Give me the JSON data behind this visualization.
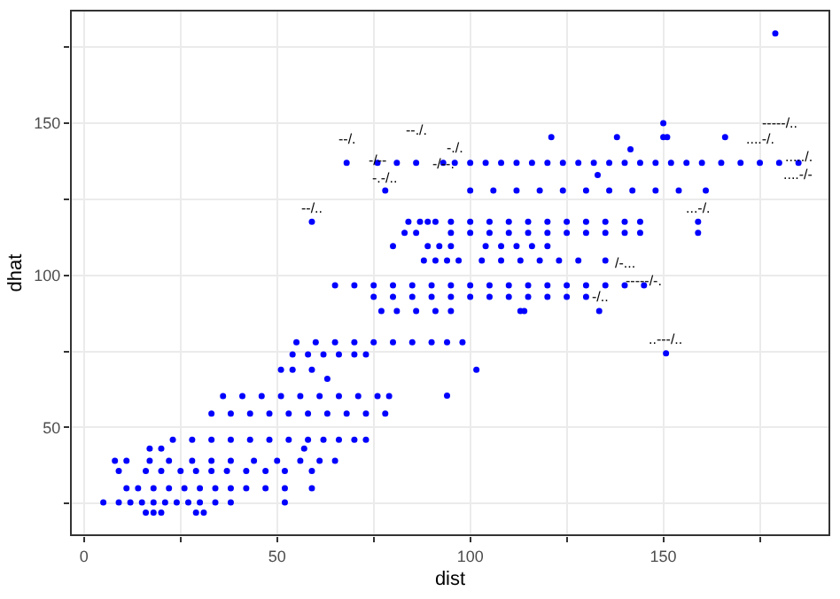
{
  "chart_data": {
    "type": "scatter",
    "xlabel": "dist",
    "ylabel": "dhat",
    "xlim": [
      -3.4,
      193
    ],
    "ylim": [
      14.6,
      187
    ],
    "xticks": [
      0,
      {
        "value": 25,
        "label": null
      },
      50,
      {
        "value": 75,
        "label": null
      },
      100,
      {
        "value": 125,
        "label": null
      },
      150,
      {
        "value": 175,
        "label": null
      }
    ],
    "yticks": [
      {
        "value": 25,
        "label": null
      },
      50,
      {
        "value": 75,
        "label": null
      },
      100,
      {
        "value": 125,
        "label": null
      },
      150,
      {
        "value": 175,
        "label": null
      }
    ],
    "grid": true,
    "marker": "circle",
    "series": [
      {
        "color": "#0000ff",
        "x": [
          16,
          18,
          20,
          29,
          31,
          5,
          9,
          12,
          15,
          18,
          21,
          24,
          27,
          30,
          34,
          38,
          52,
          11,
          14,
          18,
          22,
          26,
          30,
          34,
          38,
          42,
          47,
          52,
          59,
          9,
          16,
          20,
          25,
          29,
          33,
          37,
          42,
          47,
          52,
          59,
          8,
          11,
          17,
          22,
          28,
          33,
          38,
          44,
          50,
          56,
          61,
          65,
          17,
          20,
          57,
          23,
          28,
          33,
          38,
          43,
          48,
          53,
          58,
          62,
          66,
          70,
          73,
          33,
          38,
          43,
          48,
          53,
          58,
          63,
          68,
          73,
          78,
          36,
          41,
          46,
          51,
          56,
          61,
          66,
          71,
          76,
          79,
          63,
          51,
          54,
          59,
          54,
          58,
          62,
          66,
          70,
          73,
          55,
          60,
          65,
          70,
          75,
          80,
          85,
          90,
          94,
          98,
          77,
          81,
          86,
          91,
          95,
          113,
          75,
          80,
          85,
          90,
          95,
          100,
          105,
          110,
          115,
          120,
          125,
          130,
          65,
          70,
          75,
          80,
          85,
          90,
          95,
          100,
          105,
          110,
          115,
          120,
          125,
          130,
          135,
          140,
          145,
          88,
          91,
          94,
          97,
          103,
          108,
          113,
          118,
          123,
          128,
          135,
          80,
          89,
          92,
          95,
          104,
          108,
          112,
          116,
          120,
          83,
          86,
          95,
          100,
          105,
          110,
          115,
          120,
          125,
          130,
          135,
          140,
          144,
          159,
          59,
          84,
          87,
          91,
          89,
          95,
          100,
          105,
          110,
          115,
          120,
          125,
          130,
          135,
          140,
          144,
          159,
          78,
          100,
          106,
          112,
          118,
          124,
          130,
          136,
          142,
          148,
          154,
          161,
          68,
          76,
          81,
          86,
          93,
          96,
          100,
          104,
          108,
          112,
          116,
          120,
          124,
          128,
          132,
          136,
          140,
          144,
          148,
          152,
          156,
          160,
          165,
          170,
          175,
          180,
          185,
          121,
          138,
          150,
          151,
          166,
          150,
          141.5,
          179,
          133,
          150.7,
          101.6,
          94,
          114,
          133.4
        ],
        "values": [
          22,
          22,
          22,
          22,
          22,
          25.4,
          25.4,
          25.4,
          25.4,
          25.4,
          25.4,
          25.4,
          25.4,
          25.4,
          25.4,
          25.4,
          25.4,
          30,
          30,
          30,
          30,
          30,
          30,
          30,
          30,
          30,
          30,
          30,
          30,
          35.7,
          35.7,
          35.7,
          35.7,
          35.7,
          35.7,
          35.7,
          35.7,
          35.7,
          35.7,
          35.7,
          39.1,
          39.1,
          39.1,
          39.1,
          39.1,
          39.1,
          39.1,
          39.1,
          39.1,
          39.1,
          39.1,
          39.1,
          43.1,
          43.1,
          43.1,
          46,
          46,
          46,
          46,
          46,
          46,
          46,
          46,
          46,
          46,
          46,
          46,
          54.6,
          54.6,
          54.6,
          54.6,
          54.6,
          54.6,
          54.6,
          54.6,
          54.6,
          54.6,
          60.3,
          60.3,
          60.3,
          60.3,
          60.3,
          60.3,
          60.3,
          60.3,
          60.3,
          60.3,
          66,
          69,
          69,
          69,
          74,
          74,
          74,
          74,
          74,
          74,
          78,
          78,
          78,
          78,
          78,
          78,
          78,
          78,
          78,
          78,
          88.3,
          88.3,
          88.3,
          88.3,
          88.3,
          88.3,
          92.9,
          92.9,
          92.9,
          92.9,
          92.9,
          92.9,
          92.9,
          92.9,
          92.9,
          92.9,
          92.9,
          92.9,
          96.7,
          96.7,
          96.7,
          96.7,
          96.7,
          96.7,
          96.7,
          96.7,
          96.7,
          96.7,
          96.7,
          96.7,
          96.7,
          96.7,
          96.7,
          96.7,
          96.7,
          104.9,
          104.9,
          104.9,
          104.9,
          104.9,
          104.9,
          104.9,
          104.9,
          104.9,
          104.9,
          104.9,
          109.6,
          109.6,
          109.6,
          109.6,
          109.6,
          109.6,
          109.6,
          109.6,
          109.6,
          114,
          114,
          114,
          114,
          114,
          114,
          114,
          114,
          114,
          114,
          114,
          114,
          114,
          114,
          117.6,
          117.6,
          117.6,
          117.6,
          117.6,
          117.6,
          117.6,
          117.6,
          117.6,
          117.6,
          117.6,
          117.6,
          117.6,
          117.6,
          117.6,
          117.6,
          117.6,
          127.9,
          127.9,
          127.9,
          127.9,
          127.9,
          127.9,
          127.9,
          127.9,
          127.9,
          127.9,
          127.9,
          127.9,
          137,
          137,
          137,
          137,
          137,
          137,
          137,
          137,
          137,
          137,
          137,
          137,
          137,
          137,
          137,
          137,
          137,
          137,
          137,
          137,
          137,
          137,
          137,
          137,
          137,
          137,
          137,
          145.4,
          145.4,
          145.4,
          145.4,
          145.4,
          150,
          141.4,
          179.5,
          133,
          74.4,
          69,
          60.5,
          88.3,
          88.3
        ]
      }
    ],
    "annotations": [
      {
        "text": "--/.",
        "x": 68,
        "y": 137
      },
      {
        "text": "-/--",
        "x": 76,
        "y": 137
      },
      {
        "text": "--./.",
        "x": 86,
        "y": 137
      },
      {
        "text": "-/--.",
        "x": 93,
        "y": 137
      },
      {
        "text": "-.-/..",
        "x": 78,
        "y": 127.9
      },
      {
        "text": "--/..",
        "x": 59,
        "y": 117.6
      },
      {
        "text": "-----/..",
        "x": 180,
        "y": 137
      },
      {
        "text": "....-/-",
        "x": 185,
        "y": 137
      },
      {
        "text": "....-/.",
        "x": 175,
        "y": 137
      },
      {
        "text": "...../.",
        "x": 185,
        "y": 137
      },
      {
        "text": "-./.",
        "x": 96,
        "y": 137
      },
      {
        "text": "...-/.",
        "x": 159,
        "y": 117.6
      },
      {
        "text": "/-...",
        "x": 140,
        "y": 96.7
      },
      {
        "text": "-----/-.",
        "x": 145,
        "y": 96.7
      },
      {
        "text": "-/..",
        "x": 133.4,
        "y": 88.3
      },
      {
        "text": "..---/..",
        "x": 150.7,
        "y": 74.4
      }
    ]
  }
}
